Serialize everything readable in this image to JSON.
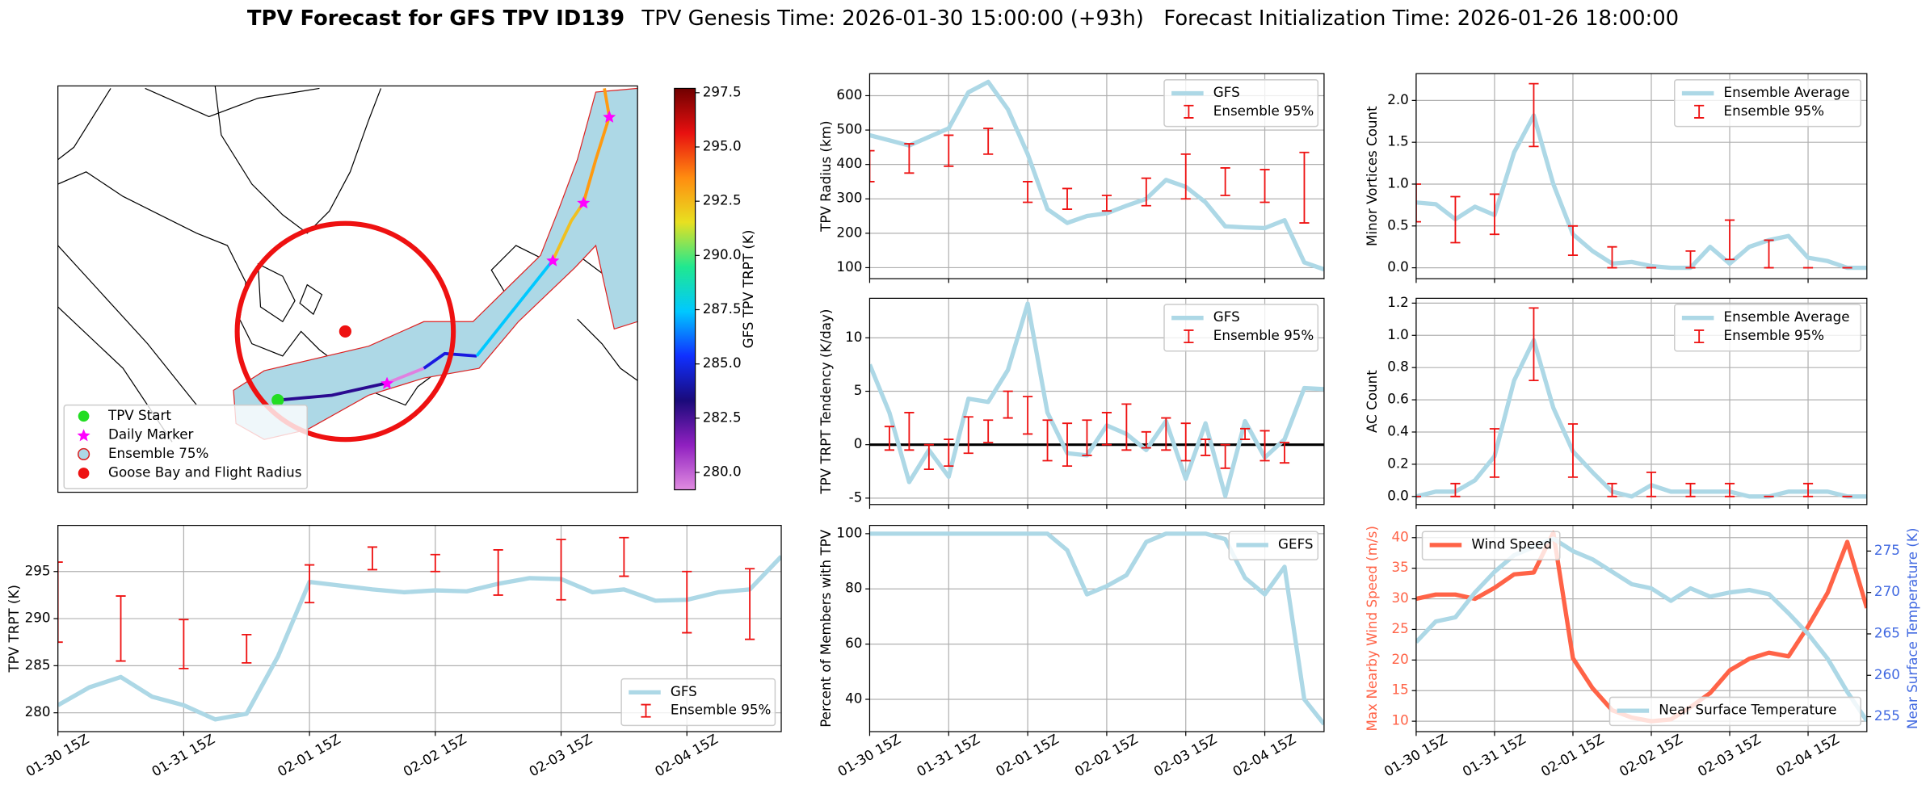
{
  "title": "TPV Forecast for GFS TPV ID139",
  "subtitle": "TPV Genesis Time: 2026-01-30 15:00:00 (+93h)   Forecast Initialization Time: 2026-01-26 18:00:00",
  "chart_data": [
    {
      "type": "map",
      "colorbar": {
        "label": "GFS TPV TRPT (K)",
        "lim": [
          279.2,
          297.7
        ],
        "colormap": [
          "#e08ce0",
          "#9020c0",
          "#1a0a7a",
          "#1030ff",
          "#00c8ff",
          "#20e890",
          "#e8e020",
          "#ff8c10",
          "#e81010",
          "#700000"
        ],
        "ticks": [
          {
            "value": 280,
            "label": "280.0"
          },
          {
            "value": 282.5,
            "label": "282.5"
          },
          {
            "value": 285,
            "label": "285.0"
          },
          {
            "value": 287.5,
            "label": "287.5"
          },
          {
            "value": 290,
            "label": "290.0"
          },
          {
            "value": 292.5,
            "label": "292.5"
          },
          {
            "value": 295,
            "label": "295.0"
          },
          {
            "value": 297.5,
            "label": "297.5"
          }
        ]
      },
      "legend": [
        {
          "label": "TPV Start",
          "marker": "circle",
          "color": "#22dd22"
        },
        {
          "label": "Daily Marker",
          "marker": "star",
          "color": "#ff00ff"
        },
        {
          "label": "Ensemble 75%",
          "marker": "circle",
          "color": "#add8e6",
          "edge": "#dd2222"
        },
        {
          "label": "Goose Bay and Flight Radius",
          "marker": "circle",
          "color": "#ee1111"
        }
      ]
    },
    {
      "type": "line",
      "ylabel": "TPV TRPT (K)",
      "xlim": [
        0,
        138
      ],
      "ylim": [
        278,
        299.9
      ],
      "yticks": [
        280,
        285,
        290,
        295
      ],
      "xticks": [
        {
          "value": 0,
          "label": "01-30 15Z"
        },
        {
          "value": 24,
          "label": "01-31 15Z"
        },
        {
          "value": 48,
          "label": "02-01 15Z"
        },
        {
          "value": 72,
          "label": "02-02 15Z"
        },
        {
          "value": 96,
          "label": "02-03 15Z"
        },
        {
          "value": 120,
          "label": "02-04 15Z"
        }
      ],
      "grid": true,
      "legend": "lower right",
      "x": [
        0,
        6,
        12,
        18,
        24,
        30,
        36,
        42,
        48,
        54,
        60,
        66,
        72,
        78,
        84,
        90,
        96,
        102,
        108,
        114,
        120,
        126,
        132,
        138
      ],
      "series": [
        {
          "name": "GFS",
          "type": "line",
          "color": "#add8e6",
          "values": [
            280.8,
            282.7,
            283.8,
            281.7,
            280.8,
            279.3,
            279.9,
            286,
            293.9,
            293.5,
            293.1,
            292.8,
            293,
            292.9,
            293.7,
            294.3,
            294.2,
            292.8,
            293.1,
            291.9,
            292,
            292.8,
            293.1,
            296.6
          ]
        },
        {
          "name": "Ensemble 95%",
          "type": "errorbar",
          "color": "#ee1111",
          "x": [
            0,
            12,
            24,
            36,
            48,
            60,
            72,
            84,
            96,
            108,
            120,
            132
          ],
          "low": [
            287.5,
            285.5,
            284.7,
            285.3,
            291.7,
            295.2,
            295,
            292.5,
            292,
            294.5,
            288.5,
            287.8
          ],
          "high": [
            296,
            292.4,
            289.9,
            288.3,
            295.7,
            297.6,
            296.8,
            297.3,
            298.4,
            298.6,
            295,
            295.3
          ]
        }
      ]
    },
    {
      "type": "line",
      "ylabel": "TPV Radius (km)",
      "xlim": [
        0,
        138
      ],
      "ylim": [
        68,
        664
      ],
      "yticks": [
        100,
        200,
        300,
        400,
        500,
        600
      ],
      "xticks": [
        0,
        24,
        48,
        72,
        96,
        120
      ],
      "show_xtick_labels": false,
      "grid": true,
      "legend": "upper right",
      "x": [
        0,
        6,
        12,
        18,
        24,
        30,
        36,
        42,
        48,
        54,
        60,
        66,
        72,
        78,
        84,
        90,
        96,
        102,
        108,
        114,
        120,
        126,
        132,
        138
      ],
      "series": [
        {
          "name": "GFS",
          "type": "line",
          "color": "#add8e6",
          "values": [
            485,
            470,
            455,
            480,
            505,
            610,
            640,
            560,
            430,
            270,
            230,
            250,
            258,
            280,
            300,
            355,
            335,
            290,
            220,
            217,
            215,
            238,
            115,
            95
          ]
        },
        {
          "name": "Ensemble 95%",
          "type": "errorbar",
          "color": "#ee1111",
          "x": [
            0,
            12,
            24,
            36,
            48,
            60,
            72,
            84,
            96,
            108,
            120,
            132
          ],
          "low": [
            350,
            375,
            395,
            430,
            290,
            270,
            265,
            280,
            300,
            310,
            290,
            230
          ],
          "high": [
            440,
            460,
            485,
            505,
            350,
            330,
            310,
            360,
            430,
            390,
            385,
            435
          ]
        }
      ]
    },
    {
      "type": "line",
      "ylabel": "TPV TRPT Tendency (K/day)",
      "xlim": [
        0,
        138
      ],
      "ylim": [
        -5.6,
        13.7
      ],
      "yticks": [
        -5,
        0,
        5,
        10
      ],
      "xticks": [
        0,
        24,
        48,
        72,
        96,
        120
      ],
      "show_xtick_labels": false,
      "grid": true,
      "legend": "upper right",
      "reference_line": 0,
      "x": [
        0,
        6,
        12,
        18,
        24,
        30,
        36,
        42,
        48,
        54,
        60,
        66,
        72,
        78,
        84,
        90,
        96,
        102,
        108,
        114,
        120,
        126,
        132,
        138
      ],
      "series": [
        {
          "name": "GFS",
          "type": "line",
          "color": "#add8e6",
          "values": [
            7.5,
            3,
            -3.5,
            -0.5,
            -3,
            4.3,
            4,
            7,
            13.2,
            3,
            -0.8,
            -1,
            1.8,
            1,
            -0.5,
            2.2,
            -3.2,
            2,
            -4.8,
            2.2,
            -1.2,
            0.5,
            5.3,
            5.2
          ]
        },
        {
          "name": "Ensemble 95%",
          "type": "errorbar",
          "color": "#ee1111",
          "x": [
            6,
            12,
            18,
            24,
            30,
            36,
            42,
            48,
            54,
            60,
            66,
            72,
            78,
            84,
            90,
            96,
            102,
            108,
            114,
            120,
            126
          ],
          "low": [
            -0.5,
            -0.5,
            -2.3,
            -2,
            -0.8,
            0.2,
            2.5,
            1,
            -1.5,
            -2,
            -1,
            0,
            -0.5,
            -0.3,
            -0.5,
            -1.5,
            -1,
            -2.2,
            0.5,
            -1.5,
            -1.7
          ],
          "high": [
            1.7,
            3,
            0,
            0.5,
            2.6,
            2.3,
            5,
            4.5,
            2.3,
            2,
            2.3,
            3,
            3.8,
            1.2,
            2.5,
            2,
            0.5,
            0,
            1.5,
            1.3,
            0.2
          ]
        }
      ]
    },
    {
      "type": "line",
      "ylabel": "Percent of Members with TPV",
      "xlim": [
        0,
        138
      ],
      "ylim": [
        28.3,
        103
      ],
      "yticks": [
        40,
        60,
        80,
        100
      ],
      "xticks": [
        {
          "value": 0,
          "label": "01-30 15Z"
        },
        {
          "value": 24,
          "label": "01-31 15Z"
        },
        {
          "value": 48,
          "label": "02-01 15Z"
        },
        {
          "value": 72,
          "label": "02-02 15Z"
        },
        {
          "value": 96,
          "label": "02-03 15Z"
        },
        {
          "value": 120,
          "label": "02-04 15Z"
        }
      ],
      "grid": true,
      "legend": "upper right",
      "x": [
        0,
        6,
        12,
        18,
        24,
        30,
        36,
        42,
        48,
        54,
        60,
        66,
        72,
        78,
        84,
        90,
        96,
        102,
        108,
        114,
        120,
        126,
        132,
        138
      ],
      "series": [
        {
          "name": "GEFS",
          "type": "line",
          "color": "#add8e6",
          "values": [
            100,
            100,
            100,
            100,
            100,
            100,
            100,
            100,
            100,
            100,
            94,
            78,
            81,
            85,
            97,
            100,
            100,
            100,
            98,
            84,
            78,
            88,
            40,
            31
          ]
        }
      ]
    },
    {
      "type": "line",
      "ylabel": "Minor Vortices Count",
      "xlim": [
        0,
        138
      ],
      "ylim": [
        -0.13,
        2.32
      ],
      "yticks": [
        {
          "value": 0,
          "label": "0.0"
        },
        {
          "value": 0.5,
          "label": "0.5"
        },
        {
          "value": 1,
          "label": "1.0"
        },
        {
          "value": 1.5,
          "label": "1.5"
        },
        {
          "value": 2,
          "label": "2.0"
        }
      ],
      "xticks": [
        0,
        24,
        48,
        72,
        96,
        120
      ],
      "show_xtick_labels": false,
      "grid": true,
      "legend": "upper right",
      "x": [
        0,
        6,
        12,
        18,
        24,
        30,
        36,
        42,
        48,
        54,
        60,
        66,
        72,
        78,
        84,
        90,
        96,
        102,
        108,
        114,
        120,
        126,
        132,
        138
      ],
      "series": [
        {
          "name": "Ensemble Average",
          "type": "line",
          "color": "#add8e6",
          "values": [
            0.78,
            0.76,
            0.58,
            0.73,
            0.63,
            1.38,
            1.82,
            1,
            0.4,
            0.2,
            0.05,
            0.07,
            0.02,
            0,
            0,
            0.25,
            0.05,
            0.25,
            0.33,
            0.38,
            0.12,
            0.08,
            0,
            0
          ]
        },
        {
          "name": "Ensemble 95%",
          "type": "errorbar",
          "color": "#ee1111",
          "x": [
            0,
            12,
            24,
            36,
            48,
            60,
            72,
            84,
            96,
            108,
            120,
            132
          ],
          "low": [
            0.55,
            0.3,
            0.4,
            1.45,
            0.15,
            0,
            0,
            0,
            0.1,
            0,
            0,
            0
          ],
          "high": [
            1,
            0.85,
            0.88,
            2.2,
            0.5,
            0.25,
            0,
            0.2,
            0.57,
            0.33,
            0,
            0
          ]
        }
      ]
    },
    {
      "type": "line",
      "ylabel": "AC Count",
      "xlim": [
        0,
        138
      ],
      "ylim": [
        -0.05,
        1.23
      ],
      "yticks": [
        {
          "value": 0,
          "label": "0.0"
        },
        {
          "value": 0.2,
          "label": "0.2"
        },
        {
          "value": 0.4,
          "label": "0.4"
        },
        {
          "value": 0.6,
          "label": "0.6"
        },
        {
          "value": 0.8,
          "label": "0.8"
        },
        {
          "value": 1,
          "label": "1.0"
        },
        {
          "value": 1.2,
          "label": "1.2"
        }
      ],
      "xticks": [
        0,
        24,
        48,
        72,
        96,
        120
      ],
      "show_xtick_labels": false,
      "grid": true,
      "legend": "upper right",
      "x": [
        0,
        6,
        12,
        18,
        24,
        30,
        36,
        42,
        48,
        54,
        60,
        66,
        72,
        78,
        84,
        90,
        96,
        102,
        108,
        114,
        120,
        126,
        132,
        138
      ],
      "series": [
        {
          "name": "Ensemble Average",
          "type": "line",
          "color": "#add8e6",
          "values": [
            0,
            0.03,
            0.03,
            0.1,
            0.25,
            0.72,
            0.97,
            0.55,
            0.28,
            0.15,
            0.03,
            0,
            0.07,
            0.03,
            0.03,
            0.03,
            0.03,
            0,
            0,
            0.03,
            0.03,
            0.03,
            0,
            0
          ]
        },
        {
          "name": "Ensemble 95%",
          "type": "errorbar",
          "color": "#ee1111",
          "x": [
            0,
            12,
            24,
            36,
            48,
            60,
            72,
            84,
            96,
            108,
            120,
            132
          ],
          "low": [
            0,
            0,
            0.12,
            0.72,
            0.12,
            0,
            0,
            0,
            0,
            0,
            0,
            0
          ],
          "high": [
            0,
            0.08,
            0.42,
            1.17,
            0.45,
            0.08,
            0.15,
            0.08,
            0.08,
            0,
            0.08,
            0
          ]
        }
      ]
    },
    {
      "type": "line",
      "ylabel": "Max Nearby Wind Speed (m/s)",
      "ylabel_color": "#ff6347",
      "y2label": "Near Surface Temperature (K)",
      "y2label_color": "#4169e1",
      "xlim": [
        0,
        138
      ],
      "ylim": [
        8.3,
        42
      ],
      "yticks": [
        10,
        15,
        20,
        25,
        30,
        35,
        40
      ],
      "y2lim": [
        253.2,
        278.1
      ],
      "y2ticks": [
        255,
        260,
        265,
        270,
        275
      ],
      "xticks": [
        {
          "value": 0,
          "label": "01-30 15Z"
        },
        {
          "value": 24,
          "label": "01-31 15Z"
        },
        {
          "value": 48,
          "label": "02-01 15Z"
        },
        {
          "value": 72,
          "label": "02-02 15Z"
        },
        {
          "value": 96,
          "label": "02-03 15Z"
        },
        {
          "value": 120,
          "label": "02-04 15Z"
        }
      ],
      "grid": true,
      "legend": "upper left",
      "legend2": "lower right",
      "x": [
        0,
        6,
        12,
        18,
        24,
        30,
        36,
        42,
        48,
        54,
        60,
        66,
        72,
        78,
        84,
        90,
        96,
        102,
        108,
        114,
        120,
        126,
        132,
        138
      ],
      "series": [
        {
          "name": "Wind Speed",
          "type": "line",
          "color": "#ff6347",
          "values": [
            30,
            30.7,
            30.7,
            30,
            31.8,
            34,
            34.3,
            40.8,
            20.3,
            15.4,
            11.8,
            10.6,
            10,
            10.3,
            12.3,
            14.6,
            18.3,
            20.2,
            21.2,
            20.6,
            25.5,
            31,
            39.3,
            28.5
          ]
        },
        {
          "name": "Near Surface Temperature",
          "type": "line",
          "axis": "y2",
          "color": "#add8e6",
          "values": [
            264,
            266.5,
            267,
            270,
            272.5,
            274.5,
            275.5,
            276.5,
            275,
            274,
            272.5,
            271,
            270.5,
            269,
            270.5,
            269.5,
            270,
            270.3,
            269.8,
            267.5,
            265,
            262,
            258,
            254.5
          ]
        }
      ]
    }
  ]
}
